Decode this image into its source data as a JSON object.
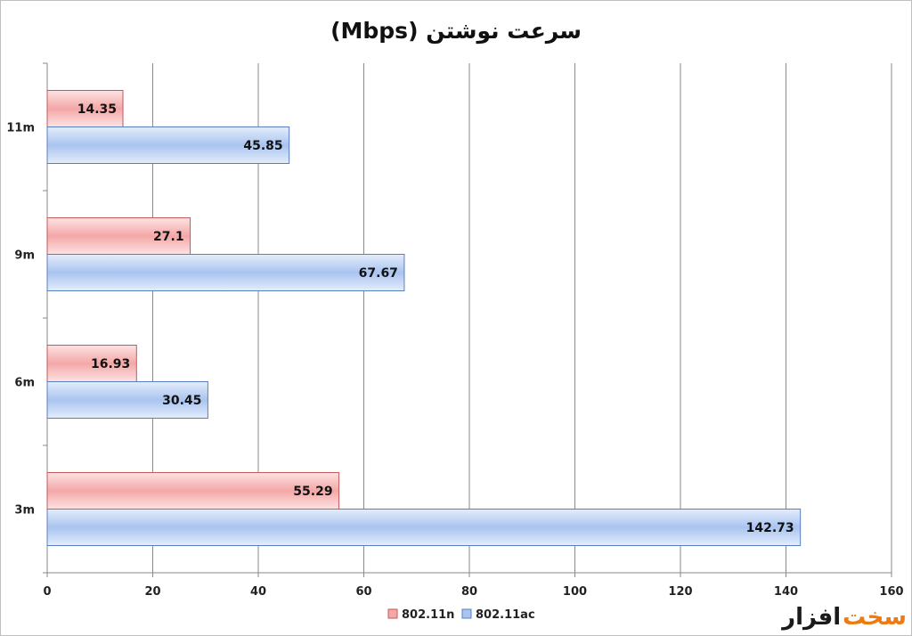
{
  "chart_data": {
    "type": "bar",
    "orientation": "horizontal",
    "title": "سرعت نوشتن (Mbps)",
    "categories": [
      "11m",
      "9m",
      "6m",
      "3m"
    ],
    "series": [
      {
        "name": "802.11n",
        "values": [
          14.35,
          27.1,
          16.93,
          55.29
        ],
        "color": "#f4a7a7"
      },
      {
        "name": "802.11ac",
        "values": [
          45.85,
          67.67,
          30.45,
          142.73
        ],
        "color": "#a9c4f0"
      }
    ],
    "xlim": [
      0,
      160
    ],
    "xticks": [
      0,
      20,
      40,
      60,
      80,
      100,
      120,
      140,
      160
    ],
    "grid": true,
    "legend": "bottom"
  },
  "watermark": {
    "text_a": "سخت",
    "text_b": "افزار"
  }
}
